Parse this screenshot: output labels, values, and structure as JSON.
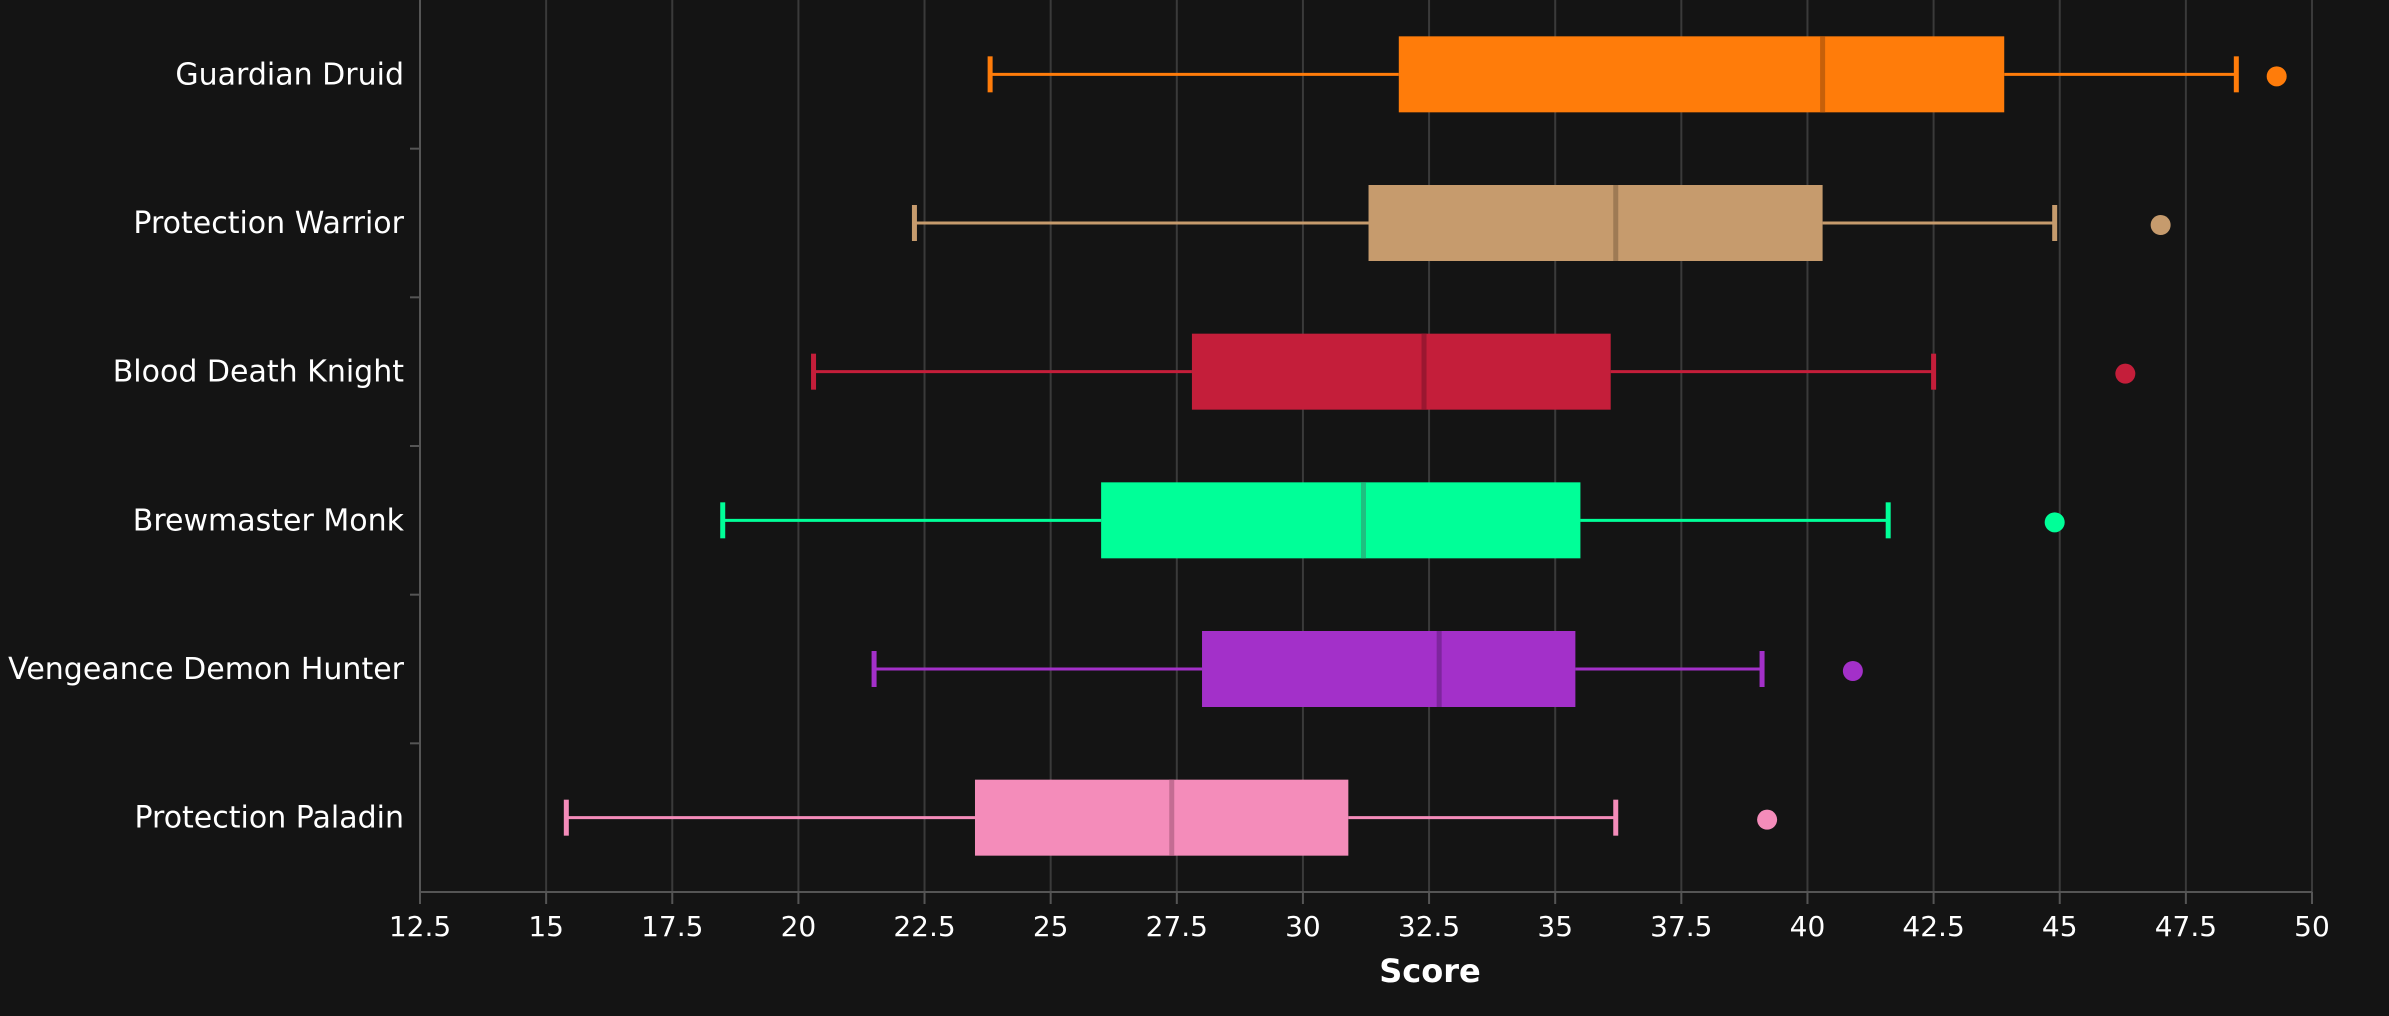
{
  "chart_data": {
    "type": "boxplot",
    "orientation": "horizontal",
    "xlabel": "Score",
    "xlim": [
      12.5,
      50
    ],
    "x_ticks": [
      "12.5",
      "15",
      "17.5",
      "20",
      "22.5",
      "25",
      "27.5",
      "30",
      "32.5",
      "35",
      "37.5",
      "40",
      "42.5",
      "45",
      "47.5",
      "50"
    ],
    "grid": "vertical",
    "background": "#141414",
    "series": [
      {
        "name": "Guardian Druid",
        "color": "#FF7C0A",
        "median_color": "#C6600A",
        "whisker_low": 23.8,
        "q1": 31.9,
        "median": 40.3,
        "q3": 43.9,
        "whisker_high": 48.5,
        "outliers": [
          49.3
        ]
      },
      {
        "name": "Protection Warrior",
        "color": "#C69B6D",
        "median_color": "#9E7A54",
        "whisker_low": 22.3,
        "q1": 31.3,
        "median": 36.2,
        "q3": 40.3,
        "whisker_high": 44.9,
        "outliers": [
          47.0
        ]
      },
      {
        "name": "Blood Death Knight",
        "color": "#C41E3A",
        "median_color": "#9A1730",
        "whisker_low": 20.3,
        "q1": 27.8,
        "median": 32.4,
        "q3": 36.1,
        "whisker_high": 42.5,
        "outliers": [
          46.3
        ]
      },
      {
        "name": "Brewmaster Monk",
        "color": "#00FF98",
        "median_color": "#1FBF80",
        "whisker_low": 18.5,
        "q1": 26.0,
        "median": 31.2,
        "q3": 35.5,
        "whisker_high": 41.6,
        "outliers": [
          44.9
        ]
      },
      {
        "name": "Vengeance Demon Hunter",
        "color": "#A330C9",
        "median_color": "#7E259E",
        "whisker_low": 21.5,
        "q1": 28.0,
        "median": 32.7,
        "q3": 35.4,
        "whisker_high": 39.1,
        "outliers": [
          40.9
        ]
      },
      {
        "name": "Protection Paladin",
        "color": "#F48CBA",
        "median_color": "#C46C93",
        "whisker_low": 15.4,
        "q1": 23.5,
        "median": 27.4,
        "q3": 30.9,
        "whisker_high": 36.2,
        "outliers": [
          39.2
        ]
      }
    ]
  }
}
